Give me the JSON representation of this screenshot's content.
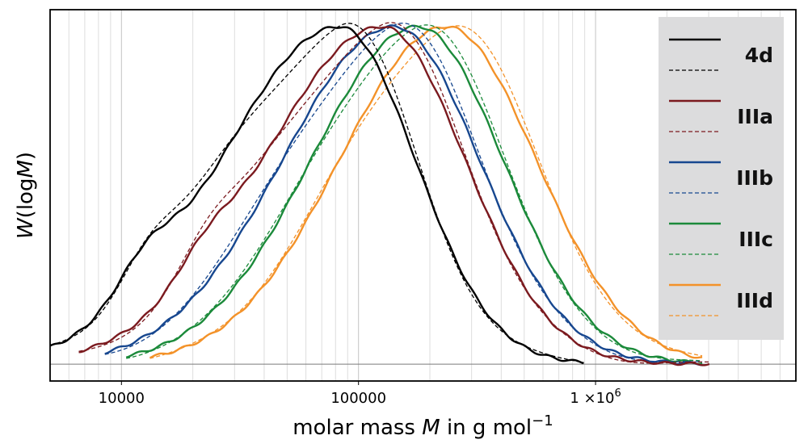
{
  "chart_data": {
    "type": "line",
    "xscale": "log",
    "xlim": [
      5000,
      7000000
    ],
    "ylim": [
      -0.05,
      1.05
    ],
    "xlabel_parts": [
      "molar mass ",
      "M",
      " in g mol",
      "−1"
    ],
    "ylabel_parts": [
      "W",
      "(log",
      "M",
      ")"
    ],
    "xticks": [
      {
        "value": 10000,
        "label": "10000"
      },
      {
        "value": 100000,
        "label": "100000"
      },
      {
        "value": 1000000,
        "label_base": "1 ×10",
        "label_exp": "6"
      }
    ],
    "grid": true,
    "legend_position": "top-right",
    "series": [
      {
        "name": "4d",
        "color": "#000000",
        "peak_logM": 4.92,
        "sigma_left": 0.5,
        "sigma_right": 0.32,
        "shoulder": {
          "logM": 4.1,
          "height": 0.1
        },
        "min_logM": 3.7,
        "max_logM": 5.95
      },
      {
        "name": "IIIa",
        "color": "#7b1a1f",
        "peak_logM": 5.1,
        "sigma_left": 0.5,
        "sigma_right": 0.35,
        "shoulder": {
          "logM": 4.35,
          "height": 0.07
        },
        "min_logM": 3.82,
        "max_logM": 6.48
      },
      {
        "name": "IIIb",
        "color": "#17478f",
        "peak_logM": 5.15,
        "sigma_left": 0.47,
        "sigma_right": 0.36,
        "shoulder": null,
        "min_logM": 3.93,
        "max_logM": 6.45
      },
      {
        "name": "IIIc",
        "color": "#1b8a3a",
        "peak_logM": 5.25,
        "sigma_left": 0.45,
        "sigma_right": 0.36,
        "shoulder": null,
        "min_logM": 4.02,
        "max_logM": 6.45
      },
      {
        "name": "IIId",
        "color": "#f39229",
        "peak_logM": 5.37,
        "sigma_left": 0.45,
        "sigma_right": 0.38,
        "shoulder": null,
        "min_logM": 4.12,
        "max_logM": 6.45
      }
    ],
    "line_styles": {
      "measured": "solid",
      "fit": "dashed"
    }
  }
}
